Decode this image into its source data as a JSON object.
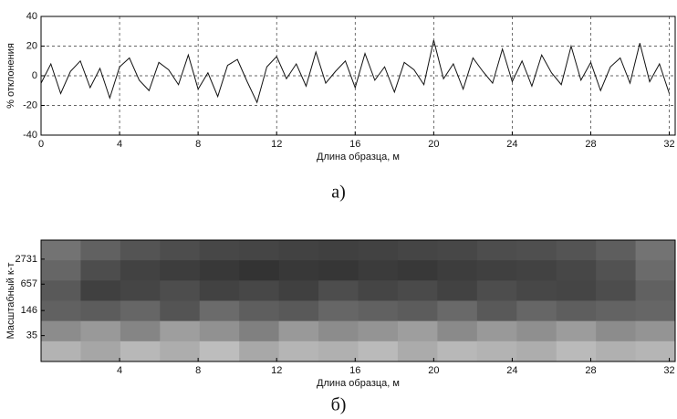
{
  "chart_data": [
    {
      "type": "line",
      "xlabel": "Длина образца, м",
      "ylabel": "% отклонения",
      "caption": "а)",
      "x": [
        0,
        0.5,
        1,
        1.5,
        2,
        2.5,
        3,
        3.5,
        4,
        4.5,
        5,
        5.5,
        6,
        6.5,
        7,
        7.5,
        8,
        8.5,
        9,
        9.5,
        10,
        10.5,
        11,
        11.5,
        12,
        12.5,
        13,
        13.5,
        14,
        14.5,
        15,
        15.5,
        16,
        16.5,
        17,
        17.5,
        18,
        18.5,
        19,
        19.5,
        20,
        20.5,
        21,
        21.5,
        22,
        22.5,
        23,
        23.5,
        24,
        24.5,
        25,
        25.5,
        26,
        26.5,
        27,
        27.5,
        28,
        28.5,
        29,
        29.5,
        30,
        30.5,
        31,
        31.5,
        32
      ],
      "values": [
        -5,
        8,
        -12,
        3,
        10,
        -8,
        5,
        -15,
        6,
        12,
        -3,
        -10,
        9,
        4,
        -6,
        14,
        -9,
        2,
        -14,
        7,
        11,
        -4,
        -18,
        6,
        13,
        -2,
        8,
        -7,
        16,
        -5,
        3,
        10,
        -8,
        15,
        -3,
        6,
        -11,
        9,
        4,
        -6,
        24,
        -2,
        8,
        -9,
        12,
        3,
        -5,
        18,
        -4,
        10,
        -7,
        14,
        2,
        -6,
        20,
        -3,
        9,
        -10,
        6,
        12,
        -5,
        22,
        -4,
        8,
        -12
      ],
      "color": "#111111",
      "xlim": [
        0,
        32.3
      ],
      "xticks": [
        0,
        4,
        8,
        12,
        16,
        20,
        24,
        28,
        32
      ],
      "ylim": [
        -40,
        40
      ],
      "yticks": [
        -40,
        -20,
        0,
        20,
        40
      ],
      "grid": true
    },
    {
      "type": "heatmap",
      "xlabel": "Длина образца, м",
      "ylabel": "Масштабный к-т",
      "caption": "б)",
      "xlim": [
        0,
        32.3
      ],
      "xticks": [
        4,
        8,
        12,
        16,
        20,
        24,
        28,
        32
      ],
      "ylim": [
        8,
        8100
      ],
      "yscale": "log",
      "yticks": [
        35,
        146,
        657,
        2731
      ],
      "values": [
        [
          0.45,
          0.38,
          0.33,
          0.3,
          0.28,
          0.27,
          0.26,
          0.25,
          0.26,
          0.27,
          0.28,
          0.3,
          0.31,
          0.33,
          0.37,
          0.45
        ],
        [
          0.4,
          0.3,
          0.26,
          0.24,
          0.22,
          0.2,
          0.22,
          0.21,
          0.23,
          0.22,
          0.24,
          0.25,
          0.26,
          0.28,
          0.32,
          0.42
        ],
        [
          0.35,
          0.25,
          0.27,
          0.3,
          0.26,
          0.28,
          0.25,
          0.3,
          0.27,
          0.29,
          0.26,
          0.3,
          0.28,
          0.27,
          0.3,
          0.38
        ],
        [
          0.38,
          0.36,
          0.4,
          0.33,
          0.42,
          0.37,
          0.35,
          0.4,
          0.38,
          0.36,
          0.41,
          0.35,
          0.4,
          0.37,
          0.39,
          0.4
        ],
        [
          0.55,
          0.6,
          0.52,
          0.62,
          0.57,
          0.5,
          0.6,
          0.55,
          0.58,
          0.62,
          0.54,
          0.6,
          0.56,
          0.61,
          0.55,
          0.58
        ],
        [
          0.7,
          0.65,
          0.72,
          0.68,
          0.74,
          0.66,
          0.71,
          0.69,
          0.73,
          0.67,
          0.72,
          0.7,
          0.68,
          0.73,
          0.69,
          0.71
        ]
      ]
    }
  ]
}
